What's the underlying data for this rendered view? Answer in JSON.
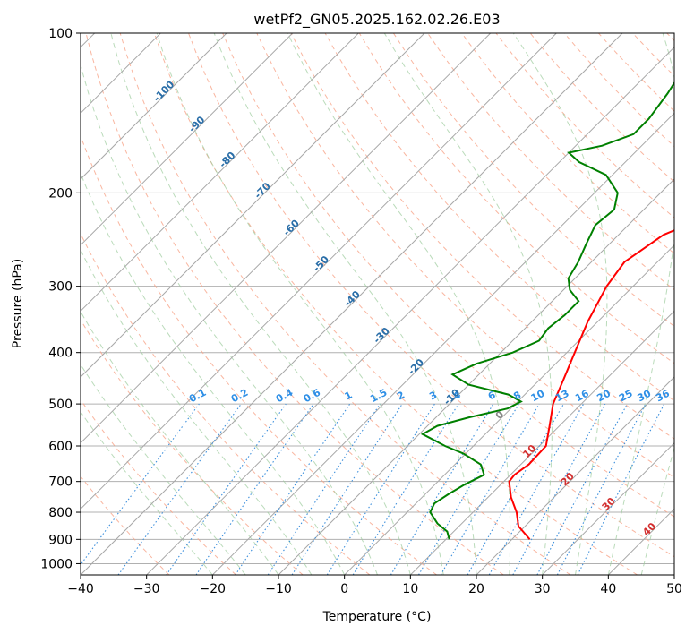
{
  "chart_data": {
    "type": "line",
    "title": "wetPf2_GN05.2025.162.02.26.E03",
    "xlabel": "Temperature (°C)",
    "ylabel": "Pressure (hPa)",
    "xlim": [
      -40,
      50
    ],
    "ylim": [
      1050,
      100
    ],
    "y_scale": "log",
    "grid": true,
    "x_ticks": [
      {
        "value": -40,
        "label": "−40"
      },
      {
        "value": -30,
        "label": "−30"
      },
      {
        "value": -20,
        "label": "−20"
      },
      {
        "value": -10,
        "label": "−10"
      },
      {
        "value": 0,
        "label": "0"
      },
      {
        "value": 10,
        "label": "10"
      },
      {
        "value": 20,
        "label": "20"
      },
      {
        "value": 30,
        "label": "30"
      },
      {
        "value": 40,
        "label": "40"
      },
      {
        "value": 50,
        "label": "50"
      }
    ],
    "y_ticks": [
      {
        "value": 100,
        "label": "100"
      },
      {
        "value": 200,
        "label": "200"
      },
      {
        "value": 300,
        "label": "300"
      },
      {
        "value": 400,
        "label": "400"
      },
      {
        "value": 500,
        "label": "500"
      },
      {
        "value": 600,
        "label": "600"
      },
      {
        "value": 700,
        "label": "700"
      },
      {
        "value": 800,
        "label": "800"
      },
      {
        "value": 900,
        "label": "900"
      },
      {
        "value": 1000,
        "label": "1000"
      }
    ],
    "temperature_profile": {
      "color": "#ff0000",
      "points": [
        {
          "p": 900,
          "t": 22.7
        },
        {
          "p": 850,
          "t": 19.0
        },
        {
          "p": 800,
          "t": 16.6
        },
        {
          "p": 750,
          "t": 13.5
        },
        {
          "p": 700,
          "t": 10.8
        },
        {
          "p": 680,
          "t": 10.6
        },
        {
          "p": 650,
          "t": 11.2
        },
        {
          "p": 600,
          "t": 11.0
        },
        {
          "p": 550,
          "t": 8.5
        },
        {
          "p": 500,
          "t": 5.7
        },
        {
          "p": 450,
          "t": 3.6
        },
        {
          "p": 400,
          "t": 1.2
        },
        {
          "p": 350,
          "t": -1.5
        },
        {
          "p": 300,
          "t": -4.0
        },
        {
          "p": 270,
          "t": -5.0
        },
        {
          "p": 240,
          "t": -3.2
        },
        {
          "p": 220,
          "t": 1.0
        },
        {
          "p": 200,
          "t": 6.8
        },
        {
          "p": 180,
          "t": 12.0
        },
        {
          "p": 160,
          "t": 14.0
        },
        {
          "p": 140,
          "t": 16.5
        },
        {
          "p": 120,
          "t": 19.5
        },
        {
          "p": 100,
          "t": 21.0
        }
      ]
    },
    "dewpoint_profile": {
      "color": "#008000",
      "points": [
        {
          "p": 900,
          "t": 10.5
        },
        {
          "p": 870,
          "t": 9.0
        },
        {
          "p": 840,
          "t": 6.3
        },
        {
          "p": 800,
          "t": 3.5
        },
        {
          "p": 770,
          "t": 2.8
        },
        {
          "p": 740,
          "t": 3.5
        },
        {
          "p": 710,
          "t": 4.5
        },
        {
          "p": 680,
          "t": 6.0
        },
        {
          "p": 650,
          "t": 3.9
        },
        {
          "p": 620,
          "t": -0.4
        },
        {
          "p": 600,
          "t": -4.3
        },
        {
          "p": 570,
          "t": -9.5
        },
        {
          "p": 550,
          "t": -8.5
        },
        {
          "p": 530,
          "t": -5.0
        },
        {
          "p": 510,
          "t": -0.5
        },
        {
          "p": 495,
          "t": 0.5
        },
        {
          "p": 480,
          "t": -2.5
        },
        {
          "p": 460,
          "t": -10.0
        },
        {
          "p": 440,
          "t": -14.0
        },
        {
          "p": 420,
          "t": -12.0
        },
        {
          "p": 400,
          "t": -8.2
        },
        {
          "p": 380,
          "t": -6.0
        },
        {
          "p": 360,
          "t": -6.5
        },
        {
          "p": 340,
          "t": -6.0
        },
        {
          "p": 320,
          "t": -6.0
        },
        {
          "p": 305,
          "t": -9.0
        },
        {
          "p": 290,
          "t": -11.0
        },
        {
          "p": 270,
          "t": -12.0
        },
        {
          "p": 250,
          "t": -13.5
        },
        {
          "p": 230,
          "t": -15.0
        },
        {
          "p": 215,
          "t": -14.5
        },
        {
          "p": 200,
          "t": -16.5
        },
        {
          "p": 185,
          "t": -21.0
        },
        {
          "p": 175,
          "t": -27.0
        },
        {
          "p": 168,
          "t": -30.0
        },
        {
          "p": 163,
          "t": -26.0
        },
        {
          "p": 155,
          "t": -23.0
        },
        {
          "p": 145,
          "t": -23.0
        },
        {
          "p": 130,
          "t": -24.0
        },
        {
          "p": 120,
          "t": -25.0
        },
        {
          "p": 110,
          "t": -24.0
        },
        {
          "p": 100,
          "t": -23.0
        }
      ]
    },
    "mixing_ratio_labels": [
      "0.1",
      "0.2",
      "0.4",
      "0.6",
      "1",
      "1.5",
      "2",
      "3",
      "4",
      "6",
      "8",
      "10",
      "13",
      "16",
      "20",
      "25",
      "30",
      "36"
    ],
    "isotherm_labels": [
      {
        "p": 130,
        "t": -100,
        "label": "-100"
      },
      {
        "p": 150,
        "t": -90,
        "label": "-90"
      },
      {
        "p": 175,
        "t": -80,
        "label": "-80"
      },
      {
        "p": 200,
        "t": -70,
        "label": "-70"
      },
      {
        "p": 235,
        "t": -60,
        "label": "-60"
      },
      {
        "p": 275,
        "t": -50,
        "label": "-50"
      },
      {
        "p": 320,
        "t": -40,
        "label": "-40"
      },
      {
        "p": 375,
        "t": -30,
        "label": "-30"
      },
      {
        "p": 430,
        "t": -20,
        "label": "-20"
      },
      {
        "p": 490,
        "t": -10,
        "label": "-10"
      },
      {
        "p": 530,
        "t": 0,
        "label": "0"
      },
      {
        "p": 620,
        "t": 10,
        "label": "10"
      },
      {
        "p": 700,
        "t": 20,
        "label": "20"
      },
      {
        "p": 780,
        "t": 30,
        "label": "30"
      },
      {
        "p": 870,
        "t": 40,
        "label": "40"
      }
    ]
  }
}
